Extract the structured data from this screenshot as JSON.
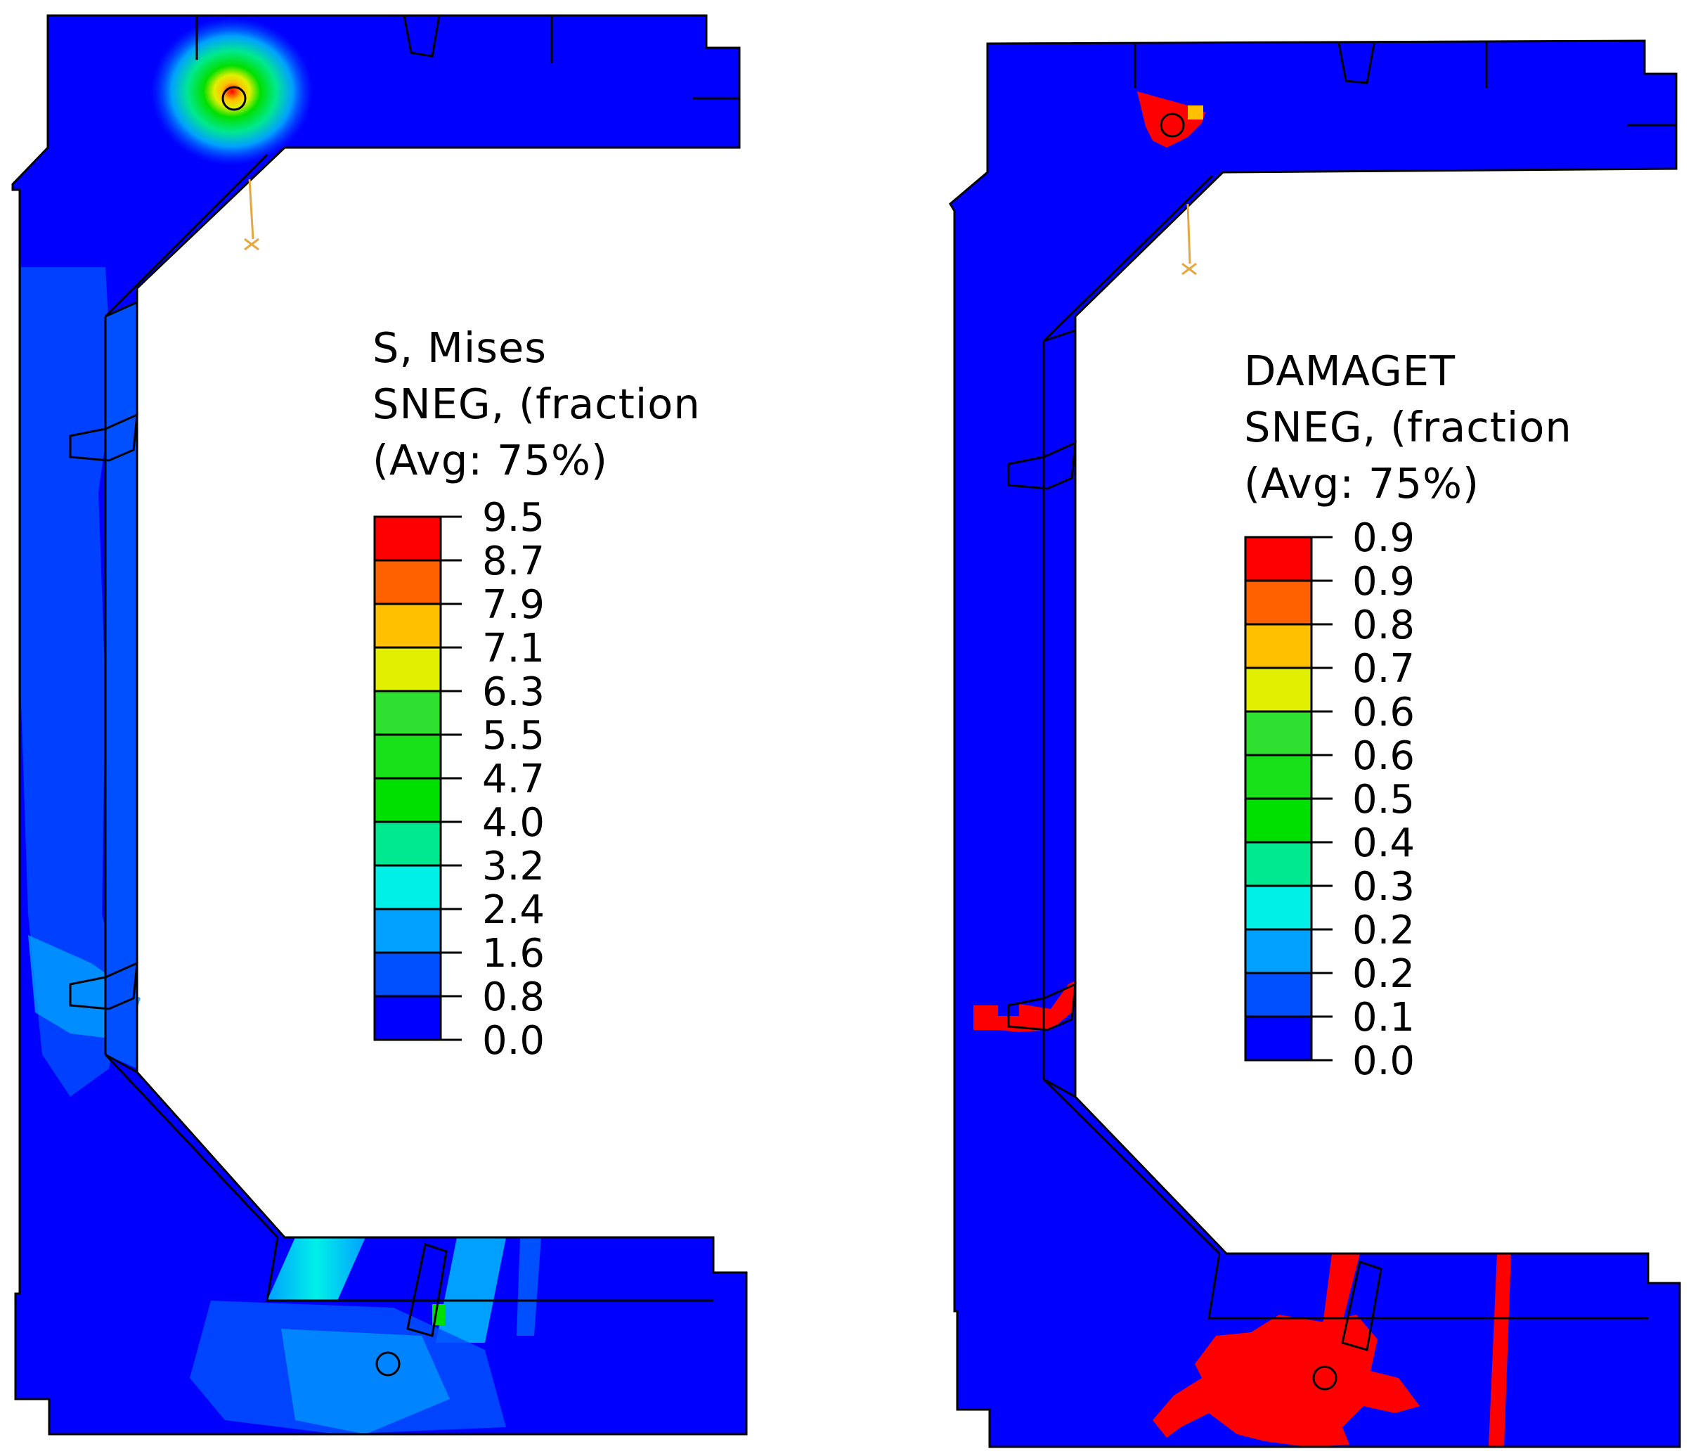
{
  "colors": {
    "background": "#ffffff",
    "model_base": "#0000ff",
    "damage_red": "#ff0000",
    "axis_triad": "#e8a640"
  },
  "contour_colors": [
    "#0000ff",
    "#0050ff",
    "#00a0ff",
    "#00f0e8",
    "#00e890",
    "#00e000",
    "#18e018",
    "#30e030",
    "#e0f000",
    "#ffc000",
    "#ff6000",
    "#ff0000"
  ],
  "left_plot": {
    "legend": {
      "title_line1": "S, Mises",
      "title_line2": "SNEG, (fraction",
      "title_line3": "(Avg: 75%)",
      "ticks": [
        "9.5",
        "8.7",
        "7.9",
        "7.1",
        "6.3",
        "5.5",
        "4.7",
        "4.0",
        "3.2",
        "2.4",
        "1.6",
        "0.8",
        "0.0"
      ]
    }
  },
  "right_plot": {
    "legend": {
      "title_line1": "DAMAGET",
      "title_line2": "SNEG, (fraction",
      "title_line3": "(Avg: 75%)",
      "ticks": [
        "0.9",
        "0.9",
        "0.8",
        "0.7",
        "0.6",
        "0.6",
        "0.5",
        "0.4",
        "0.3",
        "0.2",
        "0.2",
        "0.1",
        "0.0"
      ]
    }
  }
}
